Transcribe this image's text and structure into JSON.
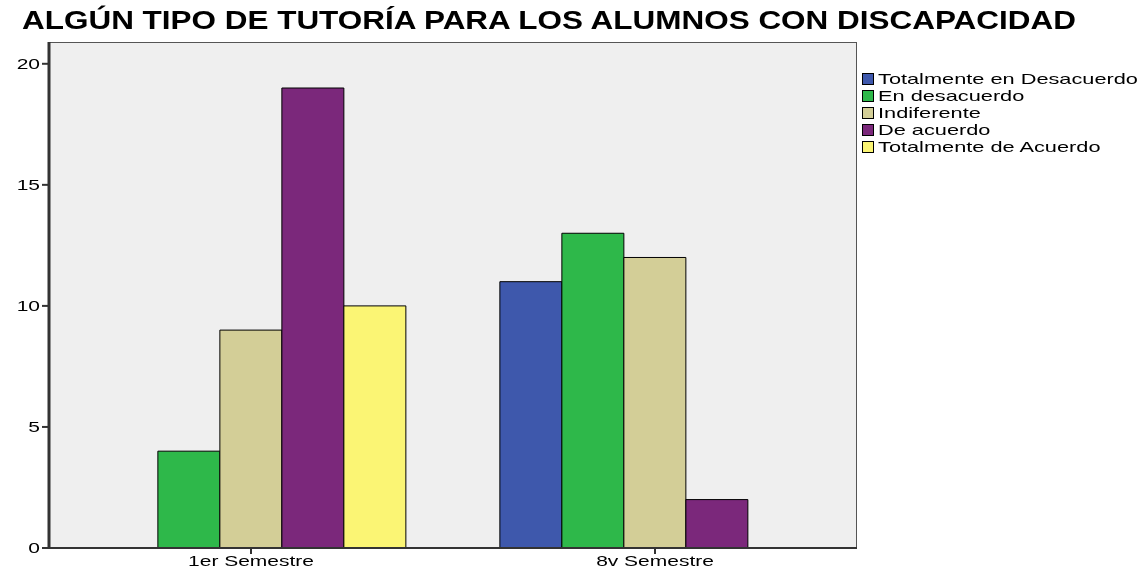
{
  "chart_data": {
    "type": "bar",
    "title": "ALGÚN TIPO DE TUTORÍA PARA LOS ALUMNOS CON DISCAPACIDAD",
    "categories": [
      "1er Semestre",
      "8v Semestre"
    ],
    "series": [
      {
        "name": "Totalmente en Desacuerdo",
        "color": "#3e58ac",
        "values": [
          null,
          11
        ]
      },
      {
        "name": "En desacuerdo",
        "color": "#2eb84a",
        "values": [
          4,
          13
        ]
      },
      {
        "name": "Indiferente",
        "color": "#d3ce97",
        "values": [
          9,
          12
        ]
      },
      {
        "name": "De acuerdo",
        "color": "#7b287b",
        "values": [
          19,
          2
        ]
      },
      {
        "name": "Totalmente de Acuerdo",
        "color": "#fbf574",
        "values": [
          10,
          null
        ]
      }
    ],
    "ylim": [
      0,
      20.9
    ],
    "yticks": [
      0,
      5,
      10,
      15,
      20
    ],
    "legend": "top right"
  }
}
